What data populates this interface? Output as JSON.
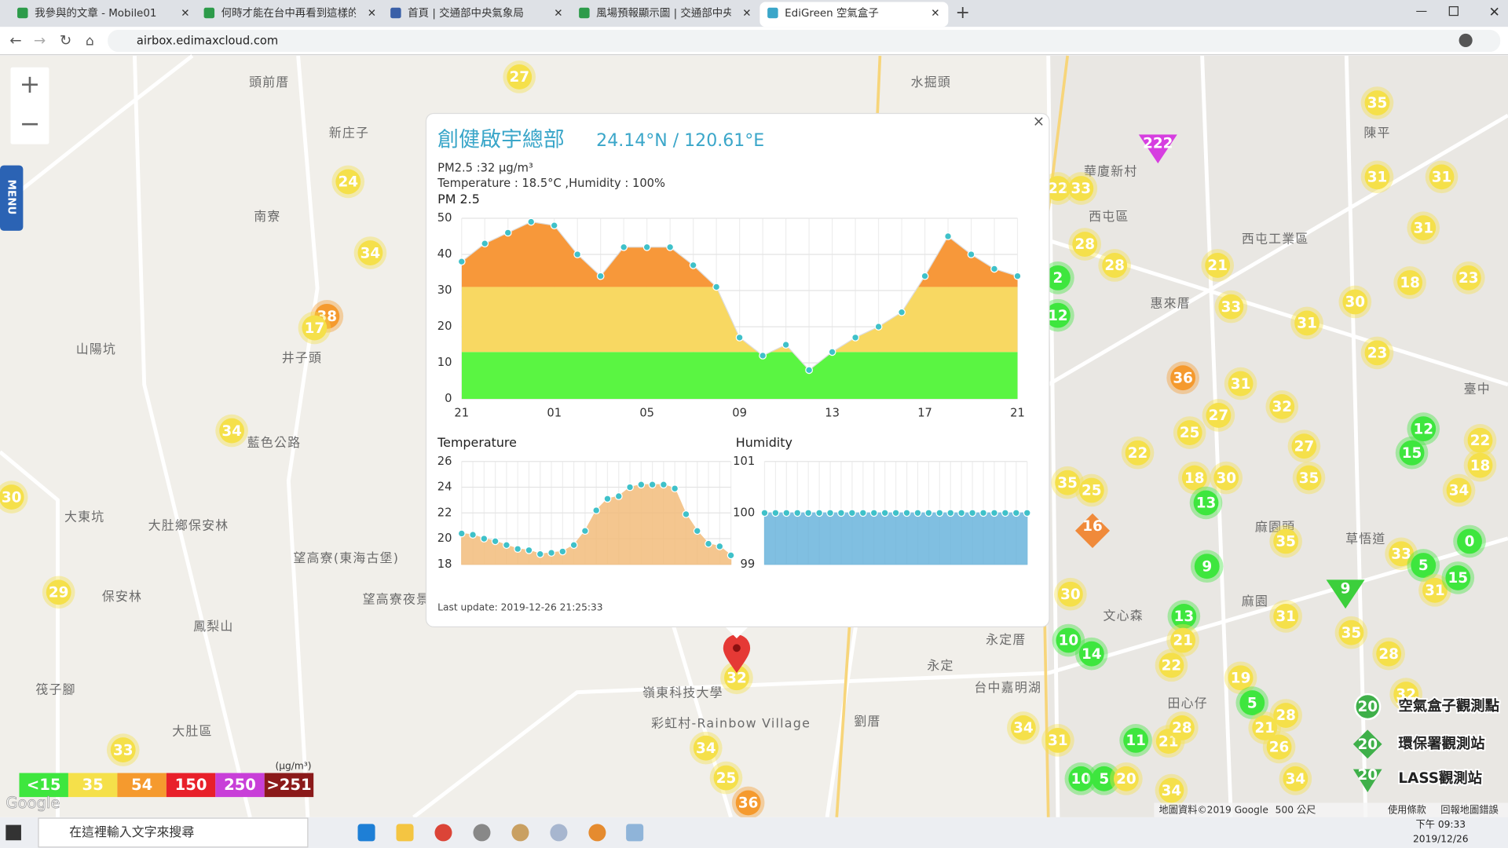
{
  "browser": {
    "tabs": [
      "我參與的文章 - Mobile01",
      "何時才能在台中再看到這樣的藍天",
      "首頁 | 交通部中央氣象局",
      "風場預報顯示圖 | 交通部中央氣象局",
      "EdiGreen 空氣盒子"
    ],
    "address": "airbox.edimaxcloud.com"
  },
  "map": {
    "controls": {
      "zoom_in": "+",
      "zoom_out": "−",
      "menu": "MENU"
    },
    "places": [
      "頭前厝",
      "新庄子",
      "南寮",
      "山陽坑",
      "井子頭",
      "藍色公路",
      "大東坑",
      "大肚鄉保安林",
      "望高寮(東海古堡)",
      "保安林",
      "鳳梨山",
      "望高寮夜景",
      "筏子腳",
      "大肚區",
      "嶺東科技大學",
      "彩虹村-Rainbow Village",
      "劉厝",
      "永定厝",
      "永定",
      "台中嘉明湖",
      "水掘頭",
      "華廈新村",
      "西屯區",
      "西屯工業區",
      "惠來厝",
      "陳平",
      "臺中",
      "麻園頭",
      "麻園",
      "文心森",
      "田心仔",
      "草悟道"
    ],
    "markers": [
      27,
      24,
      34,
      38,
      17,
      34,
      30,
      29,
      33,
      32,
      34,
      25,
      36,
      22,
      33,
      28,
      28,
      2,
      12,
      21,
      33,
      31,
      30,
      18,
      23,
      35,
      31,
      31,
      31,
      23,
      36,
      31,
      32,
      27,
      22,
      18,
      30,
      13,
      27,
      35,
      12,
      15,
      22,
      18,
      34,
      0,
      9,
      35,
      30,
      13,
      21,
      22,
      31,
      35,
      28,
      33,
      5,
      31,
      15,
      10,
      14,
      19,
      5,
      28,
      21,
      26,
      11,
      21,
      28,
      34,
      31,
      10,
      5,
      20,
      34,
      34,
      32,
      35,
      25,
      25
    ],
    "stations": [
      {
        "value": 222,
        "shape": "triangle",
        "color": "#d63ee0"
      },
      {
        "value": 9,
        "shape": "triangle",
        "color": "#3ccf3c"
      },
      {
        "value": 16,
        "shape": "diamond",
        "color": "#f08a3a"
      }
    ],
    "legend_types": [
      {
        "value": 20,
        "label": "空氣盒子觀測點"
      },
      {
        "value": 20,
        "label": "環保署觀測站"
      },
      {
        "value": 20,
        "label": "LASS觀測站"
      }
    ],
    "scale": {
      "unit": "(μg/m³)",
      "items": [
        {
          "value": 15,
          "label": "<15",
          "color": "#3ee63e"
        },
        {
          "value": 35,
          "label": "35",
          "color": "#f5e04a"
        },
        {
          "value": 54,
          "label": "54",
          "color": "#f59a2e"
        },
        {
          "value": 150,
          "label": "150",
          "color": "#e8202a"
        },
        {
          "value": 250,
          "label": "250",
          "color": "#c83fd8"
        },
        {
          "value": 251,
          "label": ">251",
          "color": "#8b1a1a"
        }
      ]
    },
    "logo": "Google",
    "attribution": "地圖資料©2019 Google",
    "distance": "500 公尺",
    "terms": "使用條款",
    "report": "回報地圖錯誤"
  },
  "popup": {
    "title": "創健啟宇總部",
    "coords": "24.14°N / 120.61°E",
    "pm_now": "PM2.5 :32 μg/m³",
    "weather": "Temperature : 18.5°C ,Humidity : 100%",
    "close": "×",
    "last_update": "Last update: 2019-12-26 21:25:33"
  },
  "chart_data": [
    {
      "type": "area",
      "title": "PM 2.5",
      "categories": [
        "21",
        null,
        null,
        null,
        "01",
        null,
        null,
        null,
        "05",
        null,
        null,
        null,
        "09",
        null,
        null,
        null,
        "13",
        null,
        null,
        null,
        "17",
        null,
        null,
        null,
        "21"
      ],
      "values": [
        38,
        43,
        46,
        49,
        48,
        40,
        34,
        42,
        42,
        42,
        37,
        31,
        17,
        12,
        15,
        8,
        13,
        17,
        20,
        24,
        34,
        45,
        40,
        36,
        34
      ],
      "ylim": [
        0,
        50
      ],
      "yticks": [
        0,
        10,
        20,
        30,
        40,
        50
      ],
      "grid": true,
      "point_color": "#3fc1c9",
      "bands": [
        {
          "upto": 13,
          "color": "#5af542"
        },
        {
          "upto": 31,
          "color": "#f8d862"
        },
        {
          "upto": 50,
          "color": "#f7983a"
        }
      ]
    },
    {
      "type": "area",
      "title": "Temperature",
      "values": [
        20.4,
        20.3,
        20.0,
        19.8,
        19.5,
        19.2,
        19.1,
        18.8,
        18.9,
        19.0,
        19.5,
        20.6,
        22.2,
        23.1,
        23.3,
        24.0,
        24.2,
        24.2,
        24.2,
        23.9,
        21.9,
        20.6,
        19.6,
        19.4,
        18.7
      ],
      "ylim": [
        18,
        26
      ],
      "yticks": [
        18,
        20,
        22,
        24,
        26
      ],
      "grid": true,
      "point_color": "#3fc1c9",
      "color": "#f3bd7c"
    },
    {
      "type": "area",
      "title": "Humidity",
      "values": [
        100,
        100,
        100,
        100,
        100,
        100,
        100,
        100,
        100,
        100,
        100,
        100,
        100,
        100,
        100,
        100,
        100,
        100,
        100,
        100,
        100,
        100,
        100,
        100,
        100
      ],
      "ylim": [
        99,
        101
      ],
      "yticks": [
        99,
        100,
        101
      ],
      "grid": true,
      "point_color": "#3fc1c9",
      "color": "#6ab4dc"
    }
  ],
  "taskbar": {
    "search": "在這裡輸入文字來搜尋",
    "time": "下午 09:33",
    "date": "2019/12/26"
  }
}
